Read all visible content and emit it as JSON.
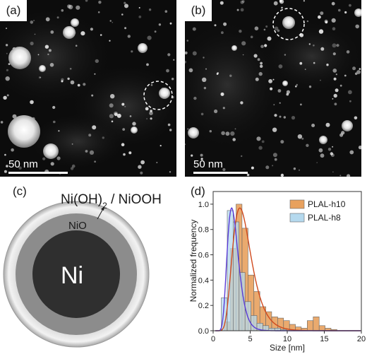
{
  "panels": {
    "a": {
      "label": "(a)",
      "scale": "50 nm"
    },
    "b": {
      "label": "(b)",
      "scale": "50 nm"
    },
    "c": {
      "label": "(c)",
      "shell_outer": "Ni(OH)",
      "shell_outer_sub": "2",
      "shell_outer_rest": " / NiOOH",
      "shell_mid": "NiO",
      "core": "Ni"
    },
    "d": {
      "label": "(d)"
    }
  },
  "chart_data": {
    "type": "bar",
    "xlabel": "Size [nm]",
    "ylabel": "Normalized frequency",
    "xlim": [
      0,
      20
    ],
    "ylim": [
      0,
      1.1
    ],
    "xticks": [
      "0",
      "5",
      "10",
      "15",
      "20"
    ],
    "yticks": [
      "0.0",
      "0.2",
      "0.4",
      "0.6",
      "0.8",
      "1.0"
    ],
    "bin_width": 0.8,
    "legend_position": "top-right",
    "series": [
      {
        "name": "PLAL-h10",
        "color": "#e8a15e",
        "bin_start": [
          1.5,
          2.3,
          3.1,
          3.9,
          4.7,
          5.5,
          6.3,
          7.1,
          7.9,
          8.7,
          9.5,
          10.3,
          11.1,
          11.9,
          12.7,
          13.5,
          14.3,
          15.1,
          15.9
        ],
        "values": [
          0.07,
          0.65,
          1.0,
          0.81,
          0.44,
          0.31,
          0.19,
          0.15,
          0.11,
          0.1,
          0.08,
          0.05,
          0.03,
          0.02,
          0.08,
          0.11,
          0.04,
          0.02,
          0.01
        ],
        "fit_peak": 3.6,
        "fit_sigma": 0.35
      },
      {
        "name": "PLAL-h8",
        "color": "#b5d9ee",
        "bin_start": [
          1.1,
          1.9,
          2.7,
          3.5,
          4.3,
          5.1,
          5.9,
          6.7,
          7.5,
          8.3,
          9.1
        ],
        "values": [
          0.26,
          0.95,
          0.86,
          0.46,
          0.23,
          0.12,
          0.06,
          0.04,
          0.02,
          0.02,
          0.01
        ],
        "fit_peak": 2.5,
        "fit_sigma": 0.3
      }
    ],
    "fit_colors": [
      "#d04a1e",
      "#5a3bd6"
    ]
  }
}
